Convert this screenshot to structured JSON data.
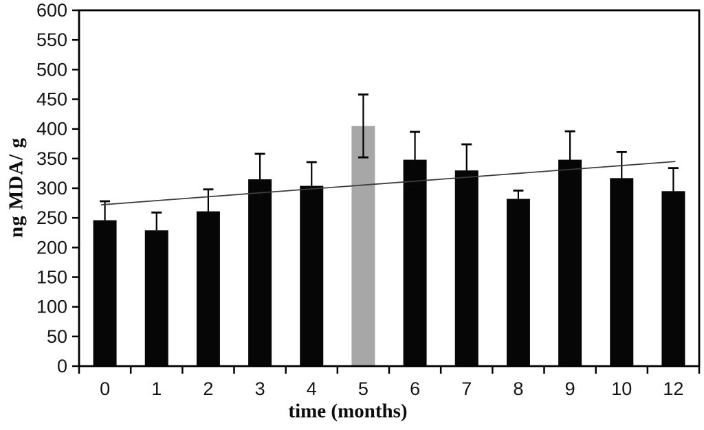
{
  "chart_data": {
    "type": "bar",
    "title": "",
    "xlabel": "time (months)",
    "ylabel": "ng MDA/ g",
    "categories": [
      "0",
      "1",
      "2",
      "3",
      "4",
      "5",
      "6",
      "7",
      "8",
      "9",
      "10",
      "12"
    ],
    "series": [
      {
        "name": "ng MDA per g",
        "values": [
          246,
          229,
          261,
          315,
          304,
          405,
          348,
          330,
          282,
          348,
          317,
          295
        ],
        "errors_up": [
          32,
          30,
          37,
          43,
          40,
          53,
          47,
          44,
          14,
          48,
          44,
          39
        ],
        "errors_down": [
          0,
          0,
          0,
          0,
          0,
          53,
          0,
          0,
          0,
          0,
          0,
          0
        ]
      }
    ],
    "highlight_index": 5,
    "colors": {
      "bar": "#060606",
      "highlight_bar": "#a7a7a7",
      "error_bar": "#000000",
      "trend_line": "#3d3d3d",
      "axis": "#000000",
      "tick_text": "#141414"
    },
    "ylim": [
      0,
      600
    ],
    "ytick_step": 50,
    "grid": "off",
    "legend": "none",
    "trendline": {
      "start_value": 272,
      "end_value": 345
    }
  }
}
